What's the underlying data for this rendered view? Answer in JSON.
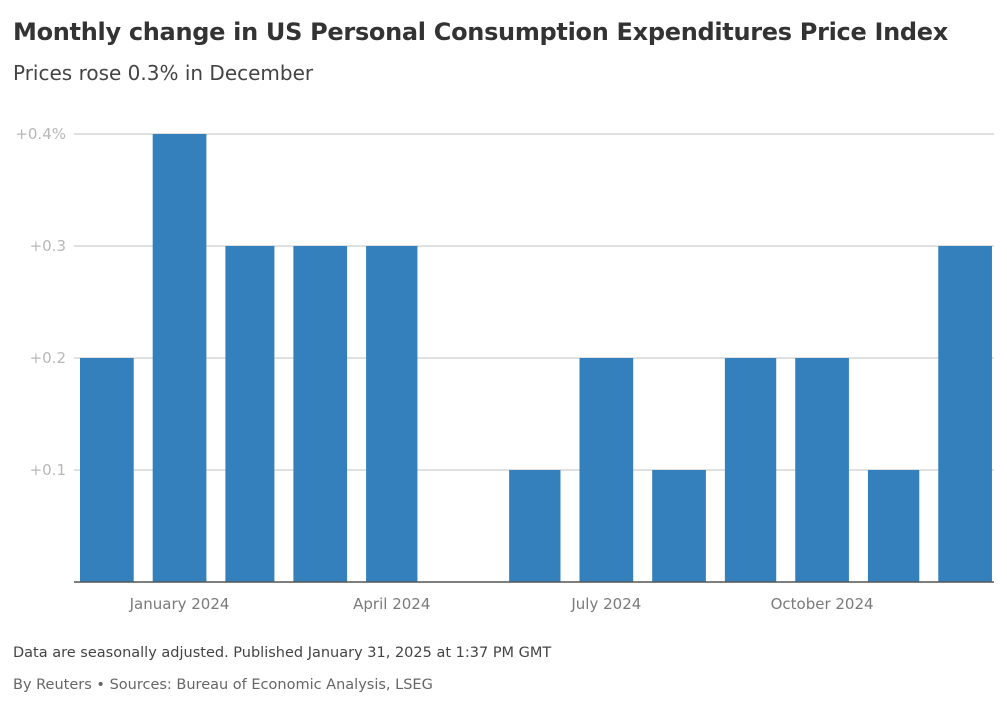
{
  "header": {
    "title": "Monthly change in US Personal Consumption Expenditures Price Index",
    "subtitle": "Prices rose 0.3% in December"
  },
  "footer": {
    "note": "Data are seasonally adjusted. Published January 31, 2025 at 1:37 PM GMT",
    "source": "By Reuters • Sources: Bureau of Economic Analysis, LSEG"
  },
  "colors": {
    "bar": "#3380bd",
    "grid": "#d6d6d6",
    "axis": "#555555"
  },
  "chart_data": {
    "type": "bar",
    "title": "Monthly change in US Personal Consumption Expenditures Price Index",
    "subtitle": "Prices rose 0.3% in December",
    "xlabel": "",
    "ylabel": "",
    "categories": [
      "2023-12",
      "2024-01",
      "2024-02",
      "2024-03",
      "2024-04",
      "2024-05",
      "2024-06",
      "2024-07",
      "2024-08",
      "2024-09",
      "2024-10",
      "2024-11",
      "2024-12"
    ],
    "values": [
      0.2,
      0.4,
      0.3,
      0.3,
      0.3,
      0.0,
      0.1,
      0.2,
      0.1,
      0.2,
      0.2,
      0.1,
      0.3
    ],
    "unit": "%",
    "ylim": [
      0,
      0.4
    ],
    "yticks": [
      {
        "value": 0.4,
        "label": "+0.4%"
      },
      {
        "value": 0.3,
        "label": "+0.3"
      },
      {
        "value": 0.2,
        "label": "+0.2"
      },
      {
        "value": 0.1,
        "label": "+0.1"
      }
    ],
    "xticks": [
      {
        "month": "2024-01",
        "label": "January 2024"
      },
      {
        "month": "2024-04",
        "label": "April 2024"
      },
      {
        "month": "2024-07",
        "label": "July 2024"
      },
      {
        "month": "2024-10",
        "label": "October 2024"
      }
    ],
    "grid": true,
    "legend": "none"
  }
}
